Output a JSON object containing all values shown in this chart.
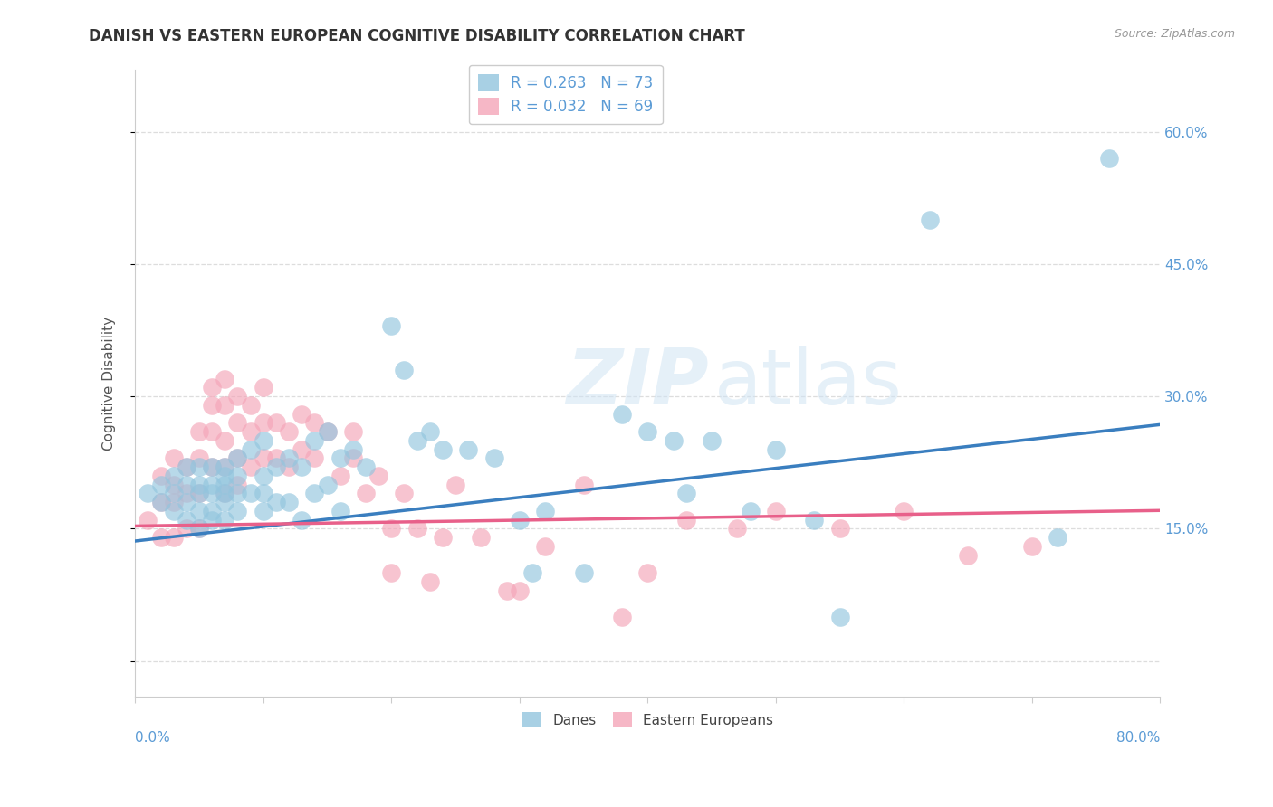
{
  "title": "DANISH VS EASTERN EUROPEAN COGNITIVE DISABILITY CORRELATION CHART",
  "source": "Source: ZipAtlas.com",
  "ylabel": "Cognitive Disability",
  "yticks": [
    0.0,
    0.15,
    0.3,
    0.45,
    0.6
  ],
  "xlim": [
    0.0,
    0.8
  ],
  "ylim": [
    -0.04,
    0.67
  ],
  "danes_color": "#92c5de",
  "eastern_color": "#f4a5b8",
  "danes_line_color": "#3a7ebf",
  "eastern_line_color": "#e8608a",
  "danes_R": 0.263,
  "danes_N": 73,
  "eastern_R": 0.032,
  "eastern_N": 69,
  "danes_x": [
    0.01,
    0.02,
    0.02,
    0.03,
    0.03,
    0.03,
    0.04,
    0.04,
    0.04,
    0.04,
    0.05,
    0.05,
    0.05,
    0.05,
    0.05,
    0.06,
    0.06,
    0.06,
    0.06,
    0.06,
    0.07,
    0.07,
    0.07,
    0.07,
    0.07,
    0.07,
    0.08,
    0.08,
    0.08,
    0.08,
    0.09,
    0.09,
    0.1,
    0.1,
    0.1,
    0.1,
    0.11,
    0.11,
    0.12,
    0.12,
    0.13,
    0.13,
    0.14,
    0.14,
    0.15,
    0.15,
    0.16,
    0.16,
    0.17,
    0.18,
    0.2,
    0.21,
    0.22,
    0.23,
    0.24,
    0.26,
    0.28,
    0.3,
    0.31,
    0.32,
    0.35,
    0.38,
    0.4,
    0.42,
    0.43,
    0.45,
    0.48,
    0.5,
    0.53,
    0.55,
    0.62,
    0.72,
    0.76
  ],
  "danes_y": [
    0.19,
    0.2,
    0.18,
    0.21,
    0.19,
    0.17,
    0.22,
    0.2,
    0.18,
    0.16,
    0.22,
    0.2,
    0.19,
    0.17,
    0.15,
    0.22,
    0.2,
    0.19,
    0.17,
    0.16,
    0.22,
    0.21,
    0.2,
    0.19,
    0.18,
    0.16,
    0.23,
    0.21,
    0.19,
    0.17,
    0.24,
    0.19,
    0.25,
    0.21,
    0.19,
    0.17,
    0.22,
    0.18,
    0.23,
    0.18,
    0.22,
    0.16,
    0.25,
    0.19,
    0.26,
    0.2,
    0.23,
    0.17,
    0.24,
    0.22,
    0.38,
    0.33,
    0.25,
    0.26,
    0.24,
    0.24,
    0.23,
    0.16,
    0.1,
    0.17,
    0.1,
    0.28,
    0.26,
    0.25,
    0.19,
    0.25,
    0.17,
    0.24,
    0.16,
    0.05,
    0.5,
    0.14,
    0.57
  ],
  "eastern_x": [
    0.01,
    0.02,
    0.02,
    0.02,
    0.03,
    0.03,
    0.03,
    0.03,
    0.04,
    0.04,
    0.04,
    0.05,
    0.05,
    0.05,
    0.05,
    0.06,
    0.06,
    0.06,
    0.06,
    0.07,
    0.07,
    0.07,
    0.07,
    0.07,
    0.08,
    0.08,
    0.08,
    0.08,
    0.09,
    0.09,
    0.09,
    0.1,
    0.1,
    0.1,
    0.11,
    0.11,
    0.12,
    0.12,
    0.13,
    0.13,
    0.14,
    0.14,
    0.15,
    0.16,
    0.17,
    0.17,
    0.18,
    0.19,
    0.2,
    0.2,
    0.21,
    0.22,
    0.23,
    0.24,
    0.25,
    0.27,
    0.29,
    0.3,
    0.32,
    0.35,
    0.38,
    0.4,
    0.43,
    0.47,
    0.5,
    0.55,
    0.6,
    0.65,
    0.7
  ],
  "eastern_y": [
    0.16,
    0.21,
    0.18,
    0.14,
    0.23,
    0.2,
    0.18,
    0.14,
    0.22,
    0.19,
    0.15,
    0.26,
    0.23,
    0.19,
    0.15,
    0.31,
    0.29,
    0.26,
    0.22,
    0.32,
    0.29,
    0.25,
    0.22,
    0.19,
    0.3,
    0.27,
    0.23,
    0.2,
    0.29,
    0.26,
    0.22,
    0.31,
    0.27,
    0.23,
    0.27,
    0.23,
    0.26,
    0.22,
    0.28,
    0.24,
    0.27,
    0.23,
    0.26,
    0.21,
    0.26,
    0.23,
    0.19,
    0.21,
    0.1,
    0.15,
    0.19,
    0.15,
    0.09,
    0.14,
    0.2,
    0.14,
    0.08,
    0.08,
    0.13,
    0.2,
    0.05,
    0.1,
    0.16,
    0.15,
    0.17,
    0.15,
    0.17,
    0.12,
    0.13
  ],
  "watermark_zip": "ZIP",
  "watermark_atlas": "atlas",
  "background_color": "#ffffff",
  "grid_color": "#dddddd",
  "title_fontsize": 12,
  "label_fontsize": 11,
  "tick_fontsize": 11
}
